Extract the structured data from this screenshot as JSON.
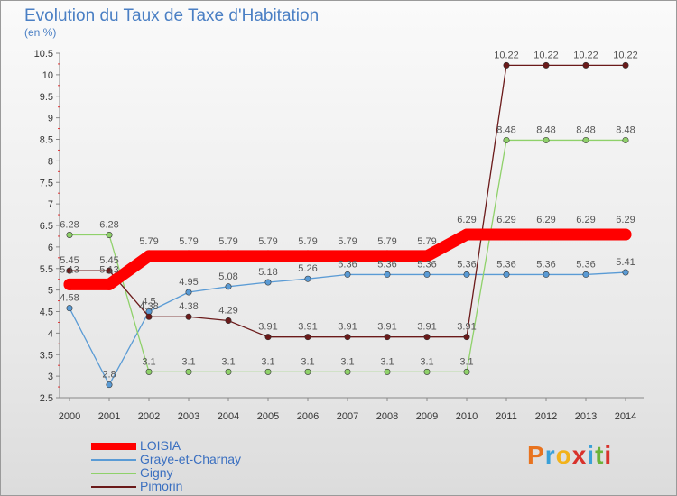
{
  "chart": {
    "title": "Evolution du Taux de Taxe d'Habitation",
    "subtitle": "(en %)"
  },
  "logo": {
    "text": "Proxiti"
  },
  "chart_data": {
    "type": "line",
    "title": "Evolution du Taux de Taxe d'Habitation",
    "subtitle": "(en %)",
    "xlabel": "",
    "ylabel": "",
    "x": [
      "2000",
      "2001",
      "2002",
      "2003",
      "2004",
      "2005",
      "2006",
      "2007",
      "2008",
      "2009",
      "2010",
      "2011",
      "2012",
      "2013",
      "2014"
    ],
    "ylim": [
      2.5,
      10.5
    ],
    "yticks": [
      "2.5",
      "3",
      "3.5",
      "4",
      "4.5",
      "5",
      "5.5",
      "6",
      "6.5",
      "7",
      "7.5",
      "8",
      "8.5",
      "9",
      "9.5",
      "10",
      "10.5"
    ],
    "legend_position": "bottom-left",
    "series": [
      {
        "name": "LOISIA",
        "color": "#ff0000",
        "values": [
          5.13,
          5.13,
          5.79,
          5.79,
          5.79,
          5.79,
          5.79,
          5.79,
          5.79,
          5.79,
          6.29,
          6.29,
          6.29,
          6.29,
          6.29
        ],
        "labels": [
          "5.13",
          "5.13",
          "5.79",
          "5.79",
          "5.79",
          "5.79",
          "5.79",
          "5.79",
          "5.79",
          "5.79",
          "6.29",
          "6.29",
          "6.29",
          "6.29",
          "6.29"
        ]
      },
      {
        "name": "Graye-et-Charnay",
        "color": "#5a9bd5",
        "values": [
          4.58,
          2.8,
          4.5,
          4.95,
          5.08,
          5.18,
          5.26,
          5.36,
          5.36,
          5.36,
          5.36,
          5.36,
          5.36,
          5.36,
          5.41
        ],
        "labels": [
          "4.58",
          "2.8",
          "4.5",
          "4.95",
          "5.08",
          "5.18",
          "5.26",
          "5.36",
          "5.36",
          "5.36",
          "5.36",
          "5.36",
          "5.36",
          "5.36",
          "5.41"
        ]
      },
      {
        "name": "Gigny",
        "color": "#8fd16a",
        "values": [
          6.28,
          6.28,
          3.1,
          3.1,
          3.1,
          3.1,
          3.1,
          3.1,
          3.1,
          3.1,
          3.1,
          8.48,
          8.48,
          8.48,
          8.48
        ],
        "labels": [
          "6.28",
          "6.28",
          "3.1",
          "3.1",
          "3.1",
          "3.1",
          "3.1",
          "3.1",
          "3.1",
          "3.1",
          "3.1",
          "8.48",
          "8.48",
          "8.48",
          "8.48"
        ]
      },
      {
        "name": "Pimorin",
        "color": "#6b1a1a",
        "values": [
          5.45,
          5.45,
          4.38,
          4.38,
          4.29,
          3.91,
          3.91,
          3.91,
          3.91,
          3.91,
          3.91,
          10.22,
          10.22,
          10.22,
          10.22
        ],
        "labels": [
          "5.45",
          "5.45",
          "4.38",
          "4.38",
          "4.29",
          "3.91",
          "3.91",
          "3.91",
          "3.91",
          "3.91",
          "3.91",
          "10.22",
          "10.22",
          "10.22",
          "10.22"
        ]
      }
    ]
  }
}
